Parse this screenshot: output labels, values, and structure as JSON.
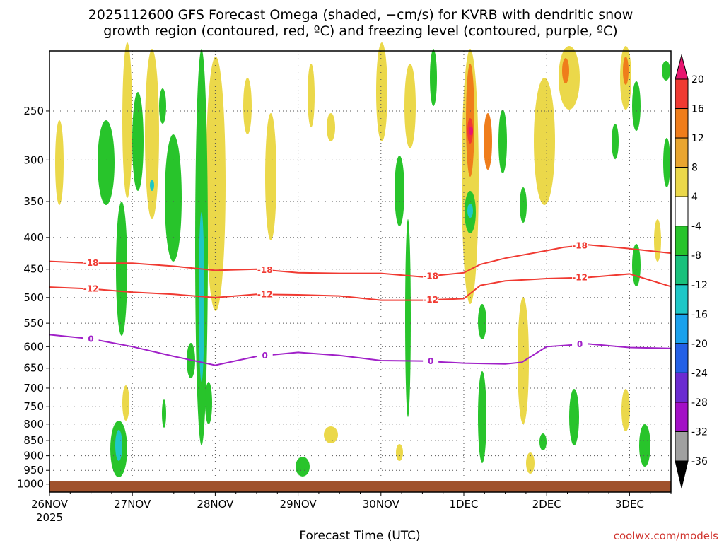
{
  "chart_data": {
    "type": "heatmap",
    "title_lines": [
      "2025112600 GFS Forecast Omega (shaded, −cm/s) for KVRB with dendritic snow",
      "growth region (contoured, red, ºC) and freezing level (contoured, purple, ºC)"
    ],
    "xlabel": "Forecast Time (UTC)",
    "x_ticks": [
      "26NOV",
      "27NOV",
      "28NOV",
      "29NOV",
      "30NOV",
      "1DEC",
      "2DEC",
      "3DEC"
    ],
    "x_year": "2025",
    "y_scale": "pressure (log, inverted)",
    "y_ticks": [
      250,
      300,
      350,
      400,
      450,
      500,
      550,
      600,
      650,
      700,
      750,
      800,
      850,
      900,
      950,
      1000
    ],
    "ylim": [
      1030,
      200
    ],
    "xlim_days": [
      0,
      7.5
    ],
    "grid": true,
    "colorbar": {
      "labels": [
        20,
        16,
        12,
        8,
        4,
        -4,
        -8,
        -12,
        -16,
        -20,
        -24,
        -28,
        -32,
        -36
      ],
      "colors": [
        "#e8156f",
        "#f03a32",
        "#ef7d1b",
        "#e9a530",
        "#ebd84a",
        "#ffffff",
        "#28c42b",
        "#19c17c",
        "#1ec7c7",
        "#1aa1ec",
        "#2460e6",
        "#6b2bd1",
        "#a30fc6",
        "#a0a0a0",
        "#000000"
      ]
    },
    "series": [
      {
        "label": "-18",
        "color": "#f03a32",
        "points": [
          [
            0,
            437
          ],
          [
            0.5,
            440
          ],
          [
            1.0,
            440
          ],
          [
            1.5,
            445
          ],
          [
            2.0,
            452
          ],
          [
            2.5,
            450
          ],
          [
            3.0,
            456
          ],
          [
            3.5,
            457
          ],
          [
            4.0,
            457
          ],
          [
            4.5,
            463
          ],
          [
            5.0,
            456
          ],
          [
            5.2,
            442
          ],
          [
            5.5,
            432
          ],
          [
            6.0,
            420
          ],
          [
            6.2,
            415
          ],
          [
            6.5,
            411
          ],
          [
            7.0,
            417
          ],
          [
            7.5,
            424
          ]
        ]
      },
      {
        "label": "-12",
        "color": "#f03a32",
        "points": [
          [
            0,
            481
          ],
          [
            0.5,
            484
          ],
          [
            1.0,
            490
          ],
          [
            1.5,
            494
          ],
          [
            2.0,
            500
          ],
          [
            2.5,
            494
          ],
          [
            3.0,
            495
          ],
          [
            3.5,
            497
          ],
          [
            4.0,
            505
          ],
          [
            4.5,
            505
          ],
          [
            5.0,
            502
          ],
          [
            5.2,
            478
          ],
          [
            5.5,
            470
          ],
          [
            6.0,
            466
          ],
          [
            6.5,
            464
          ],
          [
            7.0,
            458
          ],
          [
            7.5,
            480
          ]
        ]
      },
      {
        "label": "0",
        "color": "#a020c8",
        "points": [
          [
            0,
            574
          ],
          [
            0.5,
            583
          ],
          [
            1.0,
            600
          ],
          [
            1.5,
            622
          ],
          [
            2.0,
            643
          ],
          [
            2.5,
            622
          ],
          [
            3.0,
            613
          ],
          [
            3.5,
            620
          ],
          [
            4.0,
            632
          ],
          [
            4.5,
            633
          ],
          [
            5.0,
            638
          ],
          [
            5.5,
            640
          ],
          [
            5.7,
            636
          ],
          [
            6.0,
            600
          ],
          [
            6.5,
            594
          ],
          [
            7.0,
            602
          ],
          [
            7.5,
            604
          ]
        ]
      }
    ],
    "annotation": "coolwx.com/models"
  }
}
